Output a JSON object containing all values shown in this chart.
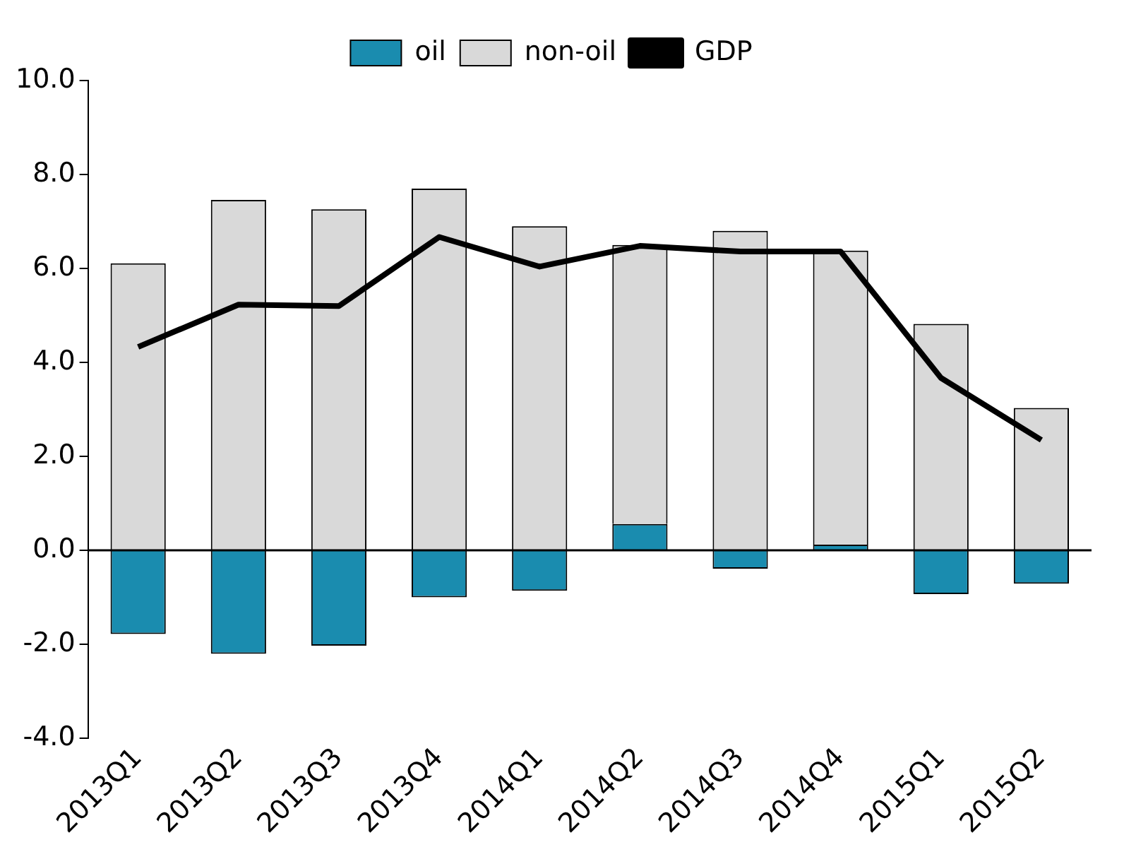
{
  "chart_data": {
    "type": "bar",
    "stacked": true,
    "categories": [
      "2013Q1",
      "2013Q2",
      "2013Q3",
      "2013Q4",
      "2014Q1",
      "2014Q2",
      "2014Q3",
      "2014Q4",
      "2015Q1",
      "2015Q2"
    ],
    "series": [
      {
        "name": "oil",
        "color": "#1a8caf",
        "values": [
          -1.78,
          -2.2,
          -2.03,
          -1.0,
          -0.86,
          0.56,
          -0.39,
          0.12,
          -0.93,
          -0.71
        ]
      },
      {
        "name": "non-oil",
        "color": "#d9d9d9",
        "values": [
          6.11,
          7.46,
          7.26,
          7.7,
          6.9,
          5.94,
          6.8,
          6.26,
          4.82,
          3.03
        ]
      },
      {
        "name": "GDP",
        "type": "line",
        "color": "#000000",
        "values": [
          4.33,
          5.23,
          5.2,
          6.67,
          6.04,
          6.48,
          6.36,
          6.36,
          3.67,
          2.35
        ]
      }
    ],
    "ylim": [
      -4,
      10
    ],
    "yticks": [
      {
        "value": -4,
        "label": "-4.0"
      },
      {
        "value": -2,
        "label": "-2.0"
      },
      {
        "value": 0,
        "label": "0.0"
      },
      {
        "value": 2,
        "label": "2.0"
      },
      {
        "value": 4,
        "label": "4.0"
      },
      {
        "value": 6,
        "label": "6.0"
      },
      {
        "value": 8,
        "label": "8.0"
      },
      {
        "value": 10,
        "label": "10.0"
      }
    ],
    "ref_lines": [
      {
        "axis": "y",
        "value": 0,
        "color": "#000000"
      }
    ],
    "legend": "top",
    "marker": "none",
    "grid": false
  }
}
